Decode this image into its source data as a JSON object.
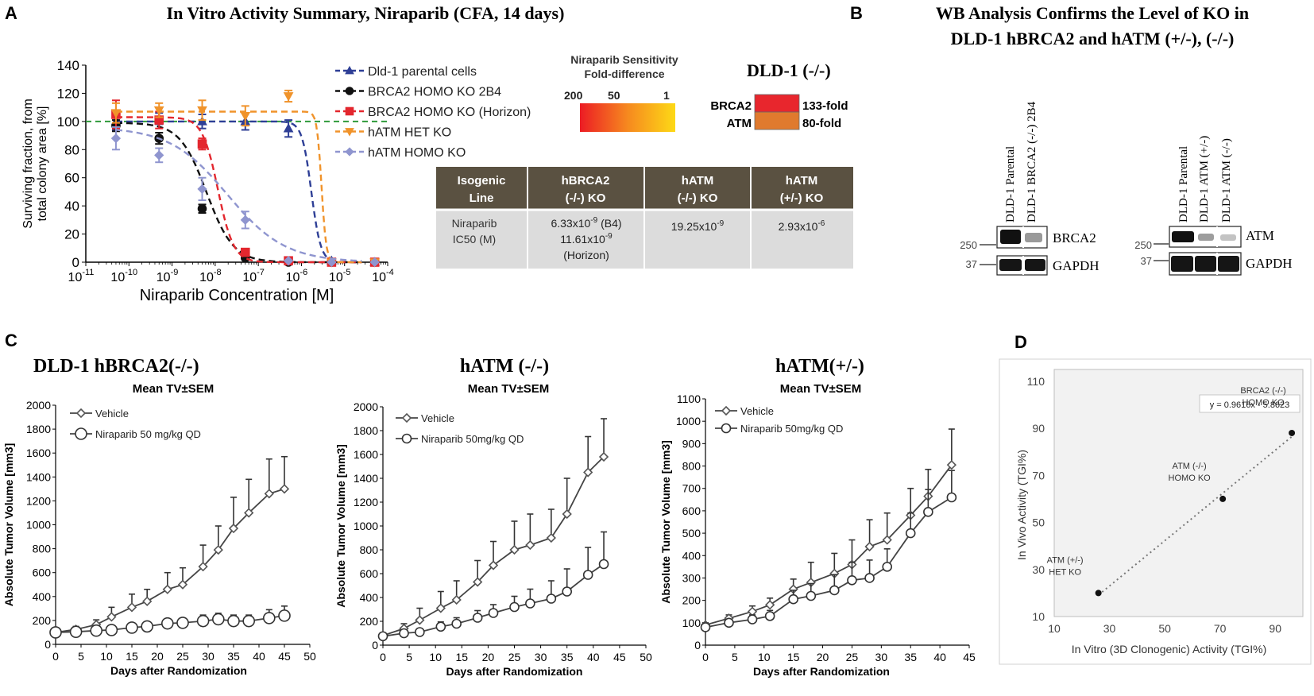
{
  "panels": {
    "a": {
      "letter": "A",
      "title": "In Vitro Activity Summary, Niraparib (CFA, 14 days)",
      "legend_header": [
        "Niraparib Sensitivity",
        "Fold-difference"
      ],
      "scale_labels": [
        "200",
        "50",
        "1"
      ],
      "dld_title": "DLD-1 (-/-)",
      "fold_rows": [
        {
          "gene": "BRCA2",
          "fold": "133-fold",
          "color": "#e8262d"
        },
        {
          "gene": "ATM",
          "fold": "80-fold",
          "color": "#e07a2e"
        }
      ],
      "table": {
        "headers": [
          [
            "Isogenic",
            "Line"
          ],
          [
            "hBRCA2",
            "(-/-) KO"
          ],
          [
            "hATM",
            "(-/-) KO"
          ],
          [
            "hATM",
            "(+/-) KO"
          ]
        ],
        "row_label": [
          "Niraparib",
          "IC50 (M)"
        ],
        "cells": [
          [
            "6.33x10",
            "-9",
            " (B4)"
          ],
          [
            "11.61x10",
            "-9",
            ""
          ],
          [
            "(Horizon)",
            "",
            ""
          ],
          [
            "19.25x10",
            "-9",
            ""
          ],
          [
            "2.93x10",
            "-6",
            ""
          ]
        ]
      }
    },
    "b": {
      "letter": "B",
      "title_lines": [
        "WB Analysis Confirms the Level of KO in",
        "DLD-1 hBRCA2 and hATM (+/-), (-/-)"
      ],
      "blot1": {
        "lanes": [
          "DLD-1 Parental",
          "DLD-1 BRCA2 (-/-) 2B4"
        ],
        "bands": [
          "BRCA2",
          "GAPDH"
        ],
        "markers": [
          "250",
          "37"
        ]
      },
      "blot2": {
        "lanes": [
          "DLD-1 Parental",
          "DLD-1 ATM (+/-)",
          "DLD-1 ATM (-/-)"
        ],
        "bands": [
          "ATM",
          "GAPDH"
        ],
        "markers": [
          "250",
          "37"
        ]
      }
    },
    "c": {
      "letter": "C"
    },
    "d": {
      "letter": "D"
    }
  },
  "chart_data": [
    {
      "id": "invitro",
      "type": "scatter",
      "xscale": "log",
      "xlim": [
        1e-11,
        0.0001
      ],
      "ylim": [
        0,
        140
      ],
      "yticks": [
        0,
        20,
        40,
        60,
        80,
        100,
        120,
        140
      ],
      "xtick_exponents": [
        "-11",
        "-10",
        "-9",
        "-8",
        "-7",
        "-6",
        "-5",
        "-4"
      ],
      "xlabel": "Niraparib Concentration [M]",
      "ylabel": [
        "Surviving fraction, from",
        "total colony area [%]"
      ],
      "reference_line": 100,
      "series": [
        {
          "name": "Dld-1 parental cells",
          "color": "#2e3f96",
          "marker": "triangle",
          "x": [
            5e-11,
            5e-10,
            5e-09,
            5e-08,
            5e-07,
            5e-06,
            5e-05
          ],
          "y": [
            100,
            102,
            100,
            100,
            95,
            1,
            0
          ],
          "err": [
            6,
            4,
            5,
            6,
            6,
            0,
            0
          ],
          "fit": {
            "ic50": 1.7e-06,
            "top": 100,
            "bottom": 0,
            "hill": 4
          }
        },
        {
          "name": "BRCA2 HOMO KO 2B4",
          "color": "#111111",
          "marker": "circle",
          "x": [
            5e-11,
            5e-10,
            5e-09,
            5e-08,
            5e-07,
            5e-06,
            5e-05
          ],
          "y": [
            97,
            88,
            38,
            3,
            0,
            0,
            0
          ],
          "err": [
            4,
            4,
            3,
            1,
            0,
            0,
            0
          ],
          "fit": {
            "ic50": 6.33e-09,
            "top": 99,
            "bottom": 0,
            "hill": 1.4
          }
        },
        {
          "name": "BRCA2 HOMO KO (Horizon)",
          "color": "#e3272e",
          "marker": "square",
          "x": [
            5e-11,
            5e-10,
            5e-09,
            5e-08,
            5e-07,
            5e-06,
            5e-05
          ],
          "y": [
            105,
            101,
            84,
            7,
            1,
            0,
            0
          ],
          "err": [
            10,
            6,
            4,
            2,
            0,
            0,
            0
          ],
          "fit": {
            "ic50": 1.16e-08,
            "top": 103,
            "bottom": 0,
            "hill": 2.4
          }
        },
        {
          "name": "hATM HET KO",
          "color": "#f0932b",
          "marker": "triangle-down",
          "x": [
            5e-11,
            5e-10,
            5e-09,
            5e-08,
            5e-07,
            5e-06,
            5e-05
          ],
          "y": [
            106,
            108,
            108,
            104,
            118,
            0,
            0
          ],
          "err": [
            7,
            5,
            7,
            7,
            4,
            0,
            0
          ],
          "fit": {
            "ic50": 2.93e-06,
            "top": 107,
            "bottom": 0,
            "hill": 8
          }
        },
        {
          "name": "hATM HOMO KO",
          "color": "#8f95cf",
          "marker": "diamond",
          "x": [
            5e-11,
            5e-10,
            5e-09,
            5e-08,
            5e-07,
            5e-06,
            5e-05
          ],
          "y": [
            88,
            76,
            52,
            30,
            1,
            0,
            0
          ],
          "err": [
            8,
            5,
            8,
            6,
            0,
            0,
            0
          ],
          "fit": {
            "ic50": 1.925e-08,
            "top": 96,
            "bottom": 0,
            "hill": 0.65
          }
        }
      ]
    },
    {
      "id": "tv1",
      "type": "line",
      "title": "DLD-1    hBRCA2(-/-)",
      "subtitle": "Mean TV±SEM",
      "xlabel": "Days after Randomization",
      "ylabel": "Absolute Tumor Volume [mm3]",
      "xlim": [
        0,
        50
      ],
      "xticks": [
        0,
        5,
        10,
        15,
        20,
        25,
        30,
        35,
        40,
        45,
        50
      ],
      "ylim": [
        0,
        2000
      ],
      "yticks": [
        0,
        200,
        400,
        600,
        800,
        1000,
        1200,
        1400,
        1600,
        1800,
        2000
      ],
      "series": [
        {
          "name": "Vehicle",
          "marker": "diamond",
          "x": [
            0,
            4,
            8,
            11,
            15,
            18,
            22,
            25,
            29,
            32,
            35,
            38,
            42,
            45
          ],
          "y": [
            100,
            125,
            165,
            230,
            310,
            360,
            460,
            500,
            650,
            790,
            970,
            1100,
            1260,
            1300
          ],
          "err": [
            20,
            25,
            40,
            80,
            110,
            100,
            140,
            140,
            180,
            200,
            260,
            280,
            290,
            270
          ]
        },
        {
          "name": "Niraparib 50 mg/kg QD",
          "marker": "circle",
          "x": [
            0,
            4,
            8,
            11,
            15,
            18,
            22,
            25,
            29,
            32,
            35,
            38,
            42,
            45
          ],
          "y": [
            100,
            105,
            115,
            120,
            140,
            150,
            175,
            180,
            195,
            210,
            195,
            195,
            220,
            240
          ],
          "err": [
            15,
            15,
            20,
            20,
            25,
            30,
            35,
            40,
            50,
            50,
            50,
            50,
            70,
            80
          ]
        }
      ]
    },
    {
      "id": "tv2",
      "type": "line",
      "title": "hATM (-/-)",
      "subtitle": "Mean TV±SEM",
      "xlabel": "Days after Randomization",
      "ylabel": "Absolute Tumor Volume [mm3]",
      "xlim": [
        0,
        50
      ],
      "xticks": [
        0,
        5,
        10,
        15,
        20,
        25,
        30,
        35,
        40,
        45,
        50
      ],
      "ylim": [
        0,
        2000
      ],
      "yticks": [
        0,
        200,
        400,
        600,
        800,
        1000,
        1200,
        1400,
        1600,
        1800,
        2000
      ],
      "series": [
        {
          "name": "Vehicle",
          "marker": "diamond",
          "x": [
            0,
            4,
            7,
            11,
            14,
            18,
            21,
            25,
            28,
            32,
            35,
            39,
            42
          ],
          "y": [
            80,
            140,
            210,
            310,
            380,
            530,
            670,
            800,
            840,
            900,
            1100,
            1450,
            1580
          ],
          "err": [
            20,
            40,
            100,
            140,
            160,
            180,
            200,
            240,
            260,
            240,
            300,
            300,
            320
          ]
        },
        {
          "name": "Niraparib 50mg/kg QD",
          "marker": "circle",
          "x": [
            0,
            4,
            7,
            11,
            14,
            18,
            21,
            25,
            28,
            32,
            35,
            39,
            42
          ],
          "y": [
            75,
            100,
            110,
            155,
            180,
            230,
            270,
            320,
            350,
            390,
            450,
            590,
            680
          ],
          "err": [
            15,
            20,
            25,
            40,
            50,
            60,
            70,
            90,
            120,
            150,
            190,
            230,
            270
          ]
        }
      ]
    },
    {
      "id": "tv3",
      "type": "line",
      "title": "hATM(+/-)",
      "subtitle": "Mean TV±SEM",
      "xlabel": "Days after Randomization",
      "ylabel": "Absolute Tumor Volume [mm3]",
      "xlim": [
        0,
        45
      ],
      "xticks": [
        0,
        5,
        10,
        15,
        20,
        25,
        30,
        35,
        40,
        45
      ],
      "ylim": [
        0,
        1100
      ],
      "yticks": [
        0,
        100,
        200,
        300,
        400,
        500,
        600,
        700,
        800,
        900,
        1000,
        1100
      ],
      "series": [
        {
          "name": "Vehicle",
          "marker": "diamond",
          "x": [
            0,
            4,
            8,
            11,
            15,
            18,
            22,
            25,
            28,
            31,
            35,
            38,
            42
          ],
          "y": [
            90,
            120,
            150,
            180,
            250,
            280,
            320,
            360,
            440,
            470,
            580,
            665,
            805
          ],
          "err": [
            10,
            15,
            25,
            30,
            45,
            90,
            90,
            110,
            120,
            120,
            120,
            120,
            160
          ]
        },
        {
          "name": "Niraparib 50mg/kg QD",
          "marker": "circle",
          "x": [
            0,
            4,
            8,
            11,
            15,
            18,
            22,
            25,
            28,
            31,
            35,
            38,
            42
          ],
          "y": [
            80,
            100,
            115,
            130,
            205,
            220,
            245,
            290,
            300,
            350,
            500,
            595,
            660
          ],
          "err": [
            10,
            15,
            20,
            25,
            40,
            55,
            70,
            80,
            80,
            80,
            90,
            100,
            120
          ]
        }
      ]
    },
    {
      "id": "correlation",
      "type": "scatter",
      "xlabel": "In Vitro (3D Clonogenic) Activity (TGI%)",
      "ylabel": "In Vivo Activity (TGI%)",
      "xlim": [
        10,
        100
      ],
      "xticks": [
        10,
        30,
        50,
        70,
        90
      ],
      "ylim": [
        10,
        115
      ],
      "yticks": [
        10,
        30,
        50,
        70,
        90,
        110
      ],
      "equation": "y = 0.9616x - 5.8623",
      "trendline": {
        "slope": 0.9616,
        "intercept": -5.8623
      },
      "points": [
        {
          "x": 26,
          "y": 20,
          "label": [
            "ATM (+/-)",
            "HET KO"
          ]
        },
        {
          "x": 71,
          "y": 60,
          "label": [
            "ATM (-/-)",
            "HOMO KO"
          ]
        },
        {
          "x": 96,
          "y": 88,
          "label": [
            "BRCA2 (-/-)",
            "HOMO KO"
          ]
        }
      ]
    }
  ],
  "colors": {
    "table_header": "#5a5141",
    "table_body": "#dcdcdc",
    "reference_line": "#2f9a3a",
    "corr_background": "#f2f2f2",
    "marker_gray": "#555555"
  }
}
